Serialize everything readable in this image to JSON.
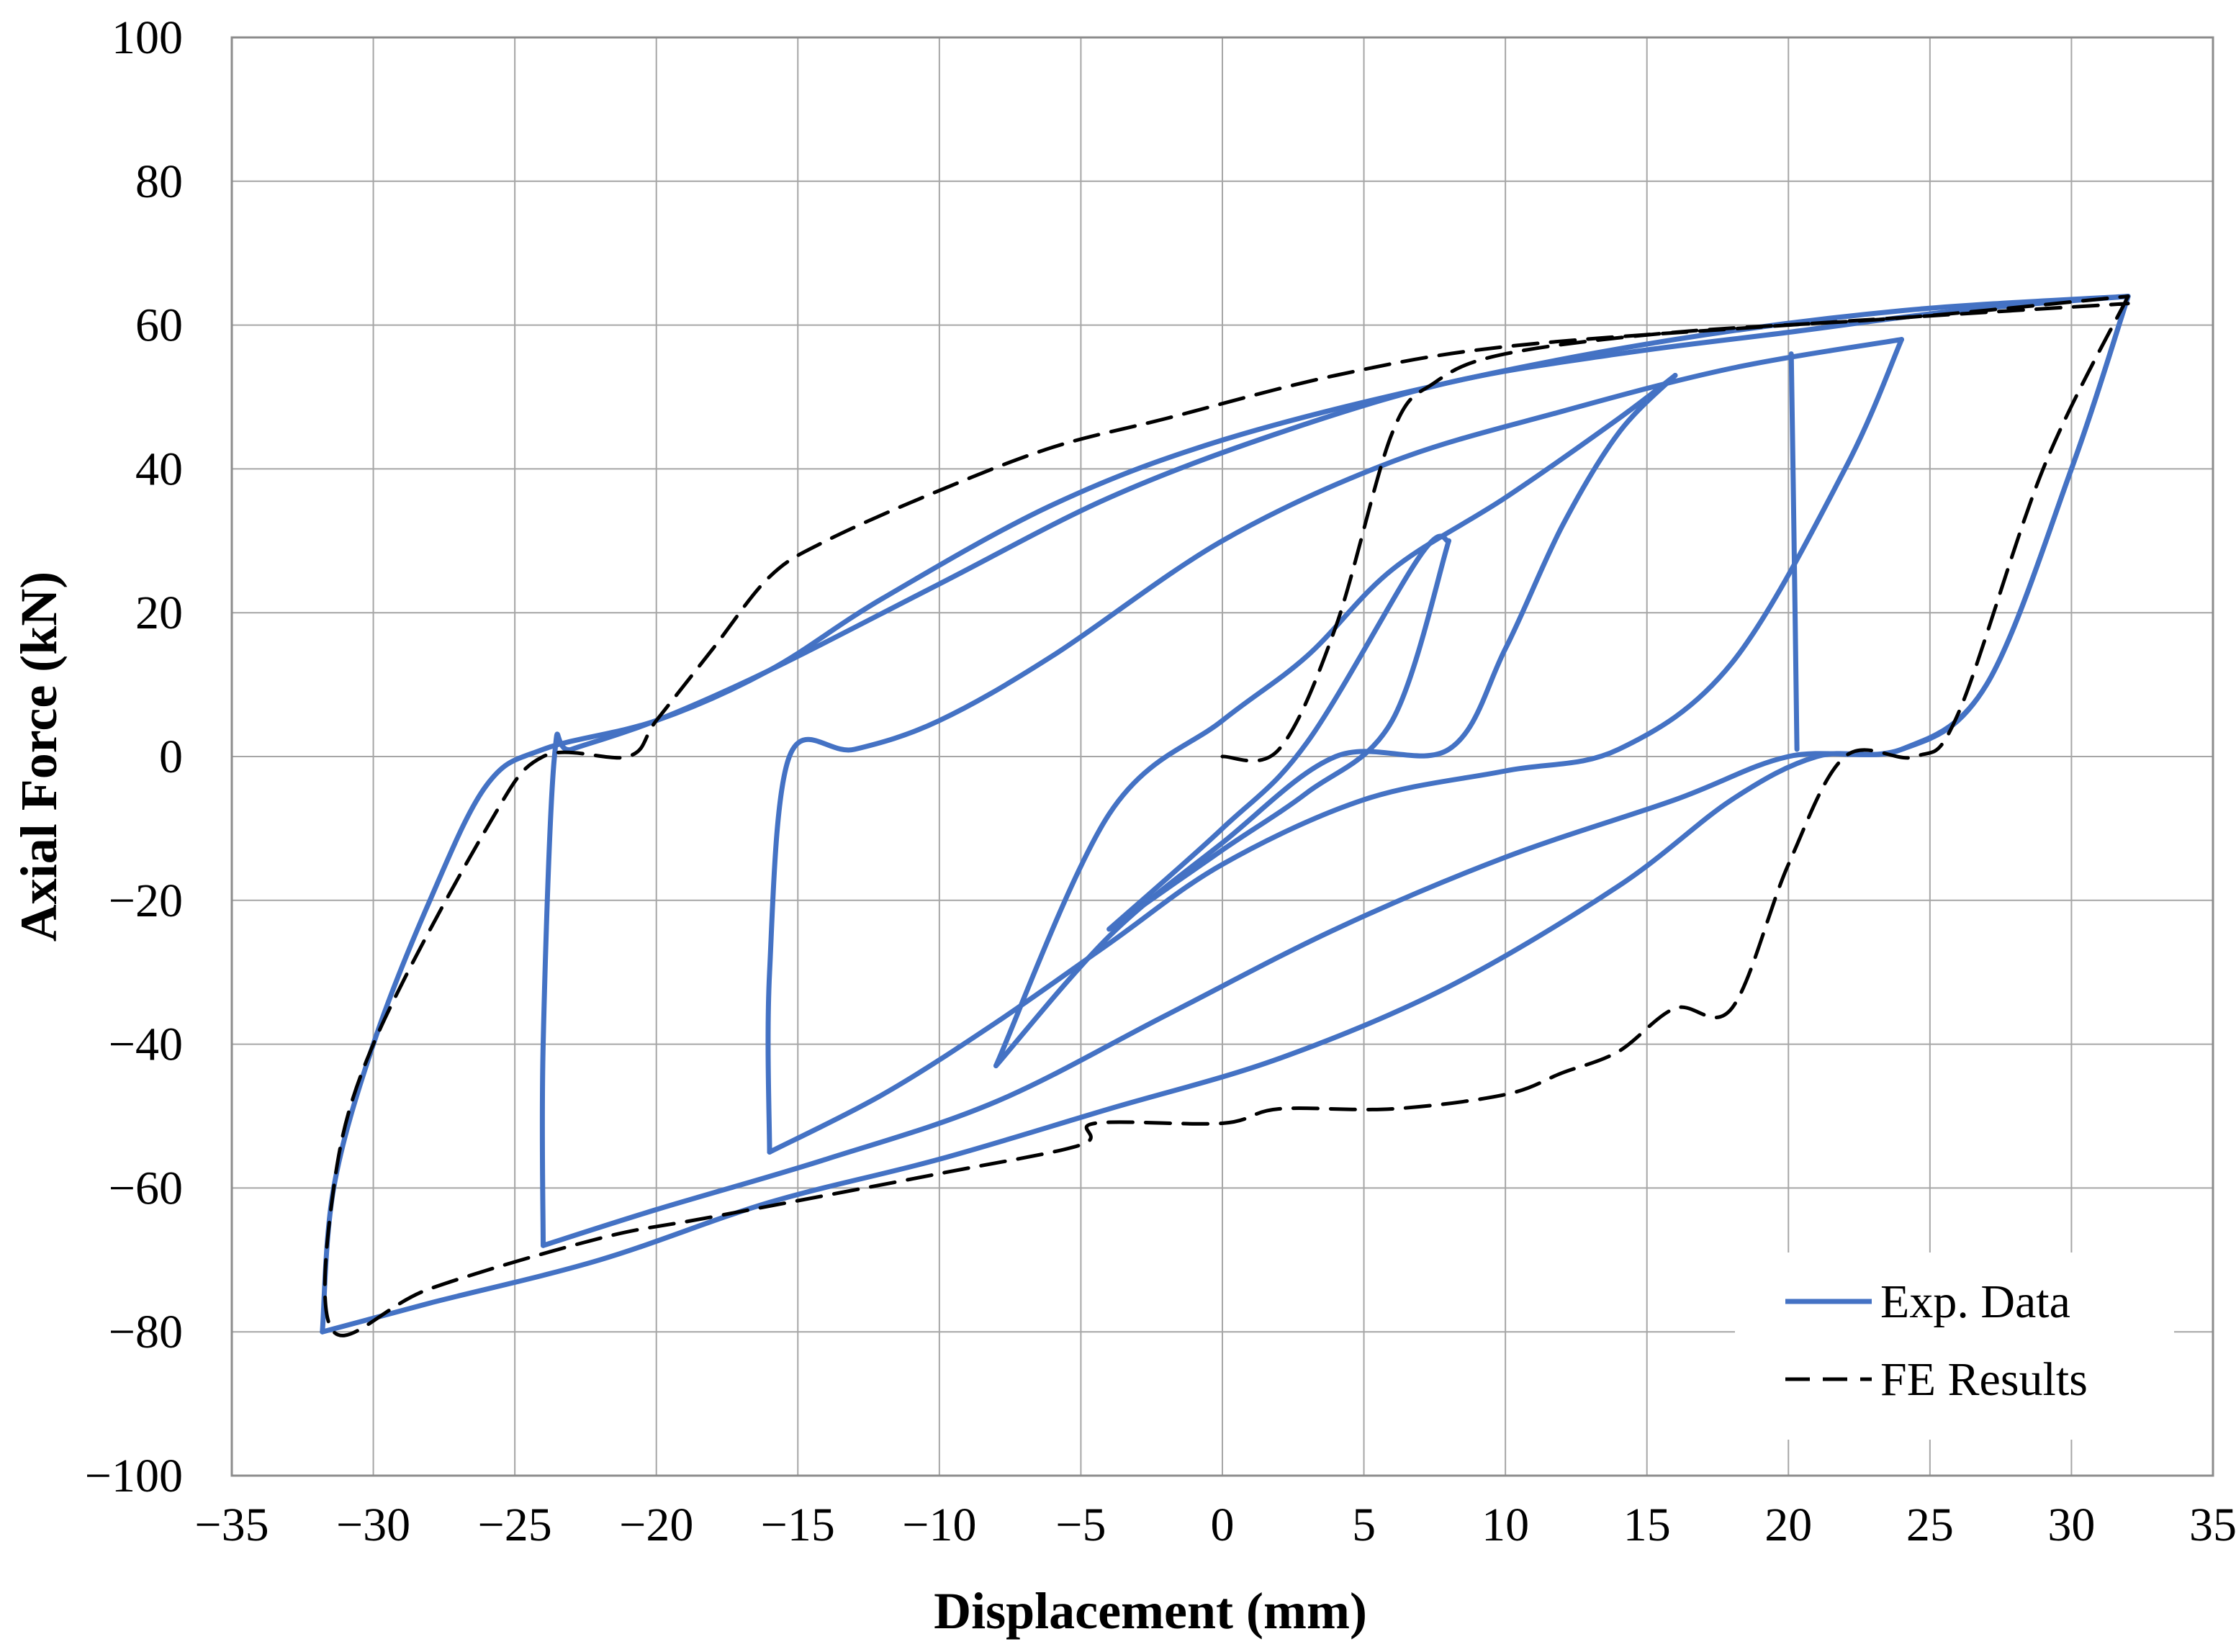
{
  "chart_data": {
    "type": "line",
    "title": "",
    "xlabel": "Displacement (mm)",
    "ylabel": "Axial Force (kN)",
    "xlim": [
      -35,
      35
    ],
    "ylim": [
      -100,
      100
    ],
    "x_ticks": [
      -35,
      -30,
      -25,
      -20,
      -15,
      -10,
      -5,
      0,
      5,
      10,
      15,
      20,
      25,
      30,
      35
    ],
    "y_ticks": [
      -100,
      -80,
      -60,
      -40,
      -20,
      0,
      20,
      40,
      60,
      80,
      100
    ],
    "x_tick_labels": [
      "−35",
      "−30",
      "−25",
      "−20",
      "−15",
      "−10",
      "−5",
      "0",
      "5",
      "10",
      "15",
      "20",
      "25",
      "30",
      "35"
    ],
    "y_tick_labels": [
      "−100",
      "−80",
      "−60",
      "−40",
      "−20",
      "0",
      "20",
      "40",
      "60",
      "80",
      "100"
    ],
    "grid": true,
    "legend_position": "bottom-right",
    "series": [
      {
        "name": "Exp. Data",
        "style": "solid",
        "color": "#4472c4",
        "loops": [
          {
            "upper": [
              [
                -4,
                -24
              ],
              [
                0,
                -10
              ],
              [
                3,
                2
              ],
              [
                7,
                28
              ],
              [
                8,
                30
              ]
            ],
            "lower": [
              [
                8,
                30
              ],
              [
                6,
                5
              ],
              [
                3,
                -5
              ],
              [
                0,
                -13
              ],
              [
                -4,
                -24
              ]
            ]
          },
          {
            "upper": [
              [
                -8,
                -43
              ],
              [
                -4,
                -25
              ],
              [
                0,
                -12
              ],
              [
                4,
                0
              ],
              [
                8,
                1
              ],
              [
                10,
                15
              ],
              [
                12,
                32
              ],
              [
                14,
                45
              ],
              [
                16,
                53
              ]
            ],
            "lower": [
              [
                16,
                53
              ],
              [
                14,
                47
              ],
              [
                10,
                36
              ],
              [
                6,
                26
              ],
              [
                3,
                14
              ],
              [
                0,
                5
              ],
              [
                -4,
                -8
              ],
              [
                -8,
                -43
              ]
            ]
          },
          {
            "upper": [
              [
                -16,
                -55
              ],
              [
                -12,
                -47
              ],
              [
                -8,
                -37
              ],
              [
                -4,
                -26
              ],
              [
                0,
                -15
              ],
              [
                5,
                -6
              ],
              [
                10,
                -2
              ],
              [
                14,
                1
              ],
              [
                18,
                13
              ],
              [
                22,
                40
              ],
              [
                24,
                58
              ]
            ],
            "lower": [
              [
                24,
                58
              ],
              [
                18,
                54
              ],
              [
                12,
                48
              ],
              [
                6,
                41
              ],
              [
                0,
                30
              ],
              [
                -6,
                14
              ],
              [
                -10,
                5
              ],
              [
                -13,
                1
              ],
              [
                -15.3,
                0
              ],
              [
                -16,
                -30
              ],
              [
                -16,
                -55
              ]
            ]
          },
          {
            "upper": [
              [
                -24,
                -68
              ],
              [
                -20,
                -63
              ],
              [
                -14,
                -56
              ],
              [
                -8,
                -48
              ],
              [
                -2,
                -36
              ],
              [
                4,
                -24
              ],
              [
                10,
                -14
              ],
              [
                16,
                -6
              ],
              [
                20,
                0
              ],
              [
                24,
                1
              ],
              [
                27,
                10
              ],
              [
                30,
                40
              ],
              [
                32,
                64
              ]
            ],
            "lower": [
              [
                32,
                64
              ],
              [
                26,
                62
              ],
              [
                20,
                59
              ],
              [
                14,
                56
              ],
              [
                8,
                52
              ],
              [
                2,
                45
              ],
              [
                -4,
                36
              ],
              [
                -10,
                24
              ],
              [
                -16,
                12
              ],
              [
                -20,
                5
              ],
              [
                -23,
                1
              ],
              [
                -23.6,
                0
              ],
              [
                -24,
                -40
              ],
              [
                -24,
                -68
              ]
            ]
          },
          {
            "upper": [
              [
                -31.8,
                -80
              ],
              [
                -28,
                -76
              ],
              [
                -22,
                -70
              ],
              [
                -16,
                -62
              ],
              [
                -10,
                -56
              ],
              [
                -4,
                -49
              ],
              [
                2,
                -42
              ],
              [
                8,
                -32
              ],
              [
                14,
                -18
              ],
              [
                18,
                -6
              ],
              [
                21,
                0
              ],
              [
                24,
                1
              ],
              [
                27,
                10
              ],
              [
                30,
                40
              ],
              [
                32,
                64
              ]
            ],
            "lower": [
              [
                32,
                64
              ],
              [
                24,
                62
              ],
              [
                16,
                58
              ],
              [
                8,
                52
              ],
              [
                0,
                44
              ],
              [
                -6,
                35
              ],
              [
                -12,
                22
              ],
              [
                -16,
                12
              ],
              [
                -20,
                5
              ],
              [
                -24,
                1
              ],
              [
                -26,
                -4
              ],
              [
                -28,
                -20
              ],
              [
                -30,
                -40
              ],
              [
                -31.4,
                -60
              ],
              [
                -31.8,
                -80
              ]
            ]
          },
          {
            "upper": [
              [
                20.1,
                56
              ],
              [
                20.2,
                30
              ],
              [
                20.3,
                1
              ]
            ],
            "lower": []
          }
        ]
      },
      {
        "name": "FE Results",
        "style": "dashed",
        "color": "#000000",
        "loops": [
          {
            "upper": [
              [
                0,
                0
              ],
              [
                2,
                1
              ],
              [
                4,
                18
              ],
              [
                6,
                45
              ],
              [
                7.5,
                52
              ],
              [
                10,
                56
              ],
              [
                16,
                59
              ],
              [
                24,
                61
              ],
              [
                32,
                64
              ]
            ],
            "lower": []
          },
          {
            "upper": [
              [
                32,
                64
              ],
              [
                29,
                40
              ],
              [
                26,
                6
              ],
              [
                24.5,
                0
              ],
              [
                22,
                0
              ],
              [
                20,
                -15
              ],
              [
                18,
                -35
              ],
              [
                16,
                -35
              ],
              [
                14,
                -41
              ],
              [
                12,
                -44
              ],
              [
                10,
                -47
              ],
              [
                6,
                -49
              ],
              [
                2,
                -49
              ],
              [
                0,
                -51
              ],
              [
                -4.5,
                -51
              ],
              [
                -5,
                -54
              ],
              [
                -10,
                -58
              ],
              [
                -18,
                -64
              ],
              [
                -22,
                -67
              ],
              [
                -28,
                -74
              ],
              [
                -31.4,
                -80
              ],
              [
                -31.4,
                -60
              ],
              [
                -30,
                -40
              ],
              [
                -26,
                -10
              ],
              [
                -24,
                0
              ],
              [
                -21,
                0
              ],
              [
                -20,
                5
              ],
              [
                -18,
                15
              ],
              [
                -16,
                25
              ],
              [
                -14,
                30
              ],
              [
                -10,
                37
              ],
              [
                -6,
                43
              ],
              [
                -2,
                47
              ],
              [
                4,
                53
              ],
              [
                10,
                57
              ],
              [
                20,
                60
              ],
              [
                32,
                63
              ]
            ],
            "lower": []
          }
        ]
      }
    ]
  }
}
